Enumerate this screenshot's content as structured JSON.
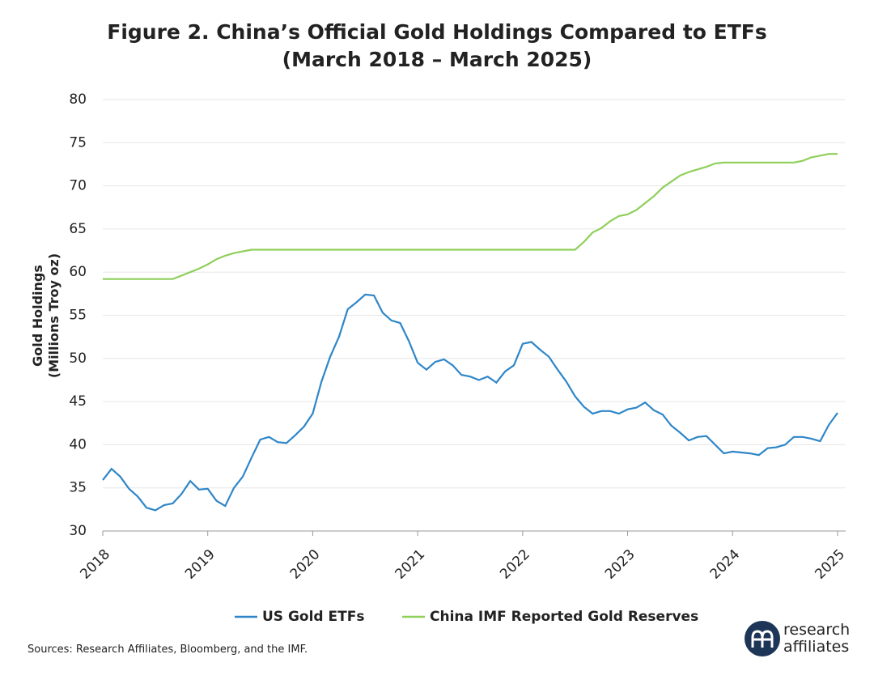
{
  "chart_data": {
    "type": "line",
    "title": [
      "Figure 2. China’s Official Gold Holdings Compared to ETFs",
      "(March 2018 – March 2025)"
    ],
    "ylabel": [
      "Gold Holdings",
      "(Millions Troy oz)"
    ],
    "categories": [
      "2018",
      null,
      null,
      null,
      null,
      null,
      null,
      null,
      null,
      null,
      null,
      null,
      "2019",
      null,
      null,
      null,
      null,
      null,
      null,
      null,
      null,
      null,
      null,
      null,
      "2020",
      null,
      null,
      null,
      null,
      null,
      null,
      null,
      null,
      null,
      null,
      null,
      "2021",
      null,
      null,
      null,
      null,
      null,
      null,
      null,
      null,
      null,
      null,
      null,
      "2022",
      null,
      null,
      null,
      null,
      null,
      null,
      null,
      null,
      null,
      null,
      null,
      "2023",
      null,
      null,
      null,
      null,
      null,
      null,
      null,
      null,
      null,
      null,
      null,
      "2024",
      null,
      null,
      null,
      null,
      null,
      null,
      null,
      null,
      null,
      null,
      null,
      "2025"
    ],
    "series": [
      {
        "name": "US Gold ETFs",
        "color": "#2e86c8",
        "values": [
          35.9,
          37.2,
          36.3,
          34.9,
          34.0,
          32.7,
          32.4,
          33.0,
          33.2,
          34.3,
          35.8,
          34.8,
          34.9,
          33.5,
          32.9,
          35.0,
          36.3,
          38.5,
          40.6,
          40.9,
          40.3,
          40.2,
          41.1,
          42.1,
          43.6,
          47.3,
          50.2,
          52.5,
          55.7,
          56.5,
          57.4,
          57.3,
          55.3,
          54.4,
          54.1,
          52.0,
          49.5,
          48.7,
          49.6,
          49.9,
          49.2,
          48.1,
          47.9,
          47.5,
          47.9,
          47.2,
          48.5,
          49.2,
          51.7,
          51.9,
          51.0,
          50.2,
          48.7,
          47.3,
          45.6,
          44.4,
          43.6,
          43.9,
          43.9,
          43.6,
          44.1,
          44.3,
          44.9,
          44.0,
          43.5,
          42.2,
          41.4,
          40.5,
          40.9,
          41.0,
          40.0,
          39.0,
          39.2,
          39.1,
          39.0,
          38.8,
          39.6,
          39.7,
          40.0,
          40.9,
          40.9,
          40.7,
          40.4,
          42.3,
          43.7
        ]
      },
      {
        "name": "China IMF Reported Gold Reserves",
        "color": "#8fcf5a",
        "values": [
          59.2,
          59.2,
          59.2,
          59.2,
          59.2,
          59.2,
          59.2,
          59.2,
          59.2,
          59.6,
          60.0,
          60.4,
          60.9,
          61.5,
          61.9,
          62.2,
          62.4,
          62.6,
          62.6,
          62.6,
          62.6,
          62.6,
          62.6,
          62.6,
          62.6,
          62.6,
          62.6,
          62.6,
          62.6,
          62.6,
          62.6,
          62.6,
          62.6,
          62.6,
          62.6,
          62.6,
          62.6,
          62.6,
          62.6,
          62.6,
          62.6,
          62.6,
          62.6,
          62.6,
          62.6,
          62.6,
          62.6,
          62.6,
          62.6,
          62.6,
          62.6,
          62.6,
          62.6,
          62.6,
          62.6,
          63.5,
          64.6,
          65.1,
          65.9,
          66.5,
          66.7,
          67.2,
          68.0,
          68.8,
          69.8,
          70.5,
          71.2,
          71.6,
          71.9,
          72.2,
          72.6,
          72.7,
          72.7,
          72.7,
          72.7,
          72.7,
          72.7,
          72.7,
          72.7,
          72.7,
          72.9,
          73.3,
          73.5,
          73.7,
          73.7
        ]
      }
    ],
    "ylim": [
      30,
      80
    ],
    "yticks": [
      30,
      35,
      40,
      45,
      50,
      55,
      60,
      65,
      70,
      75,
      80
    ],
    "grid": true,
    "legend": "bottom",
    "source": "Sources: Research Affiliates, Bloomberg, and the IMF.",
    "logo": [
      "research",
      "affiliates"
    ]
  }
}
